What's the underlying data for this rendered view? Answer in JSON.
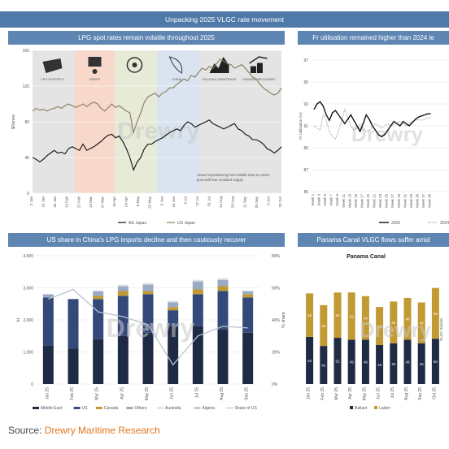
{
  "banner": "Unpacking 2025 VLGC rate movement",
  "source": {
    "prefix": "Source: ",
    "name": "Drewry Maritime Research"
  },
  "watermark": "Drewry",
  "panels": {
    "p1": "LPG spot rates remain volatile throughout 2025",
    "p2": "Fr utilisation remained higher than 2024 le",
    "p3": "US share in China's LPG imports decline and then cautiously recover",
    "p4": "Panama Canal VLGC flows suffer amid"
  },
  "chart_data": [
    {
      "type": "line",
      "title": "LPG spot rates remain volatile throughout 2025",
      "ylabel": "$/tonne",
      "ylim": [
        0,
        160
      ],
      "yticks": [
        0,
        40,
        80,
        120,
        160
      ],
      "xticks": [
        "2 Jan",
        "16 Jan",
        "30 Jan",
        "13 Feb",
        "27 Feb",
        "13 Mar",
        "27 Mar",
        "10 Apr",
        "24 Apr",
        "8 May",
        "22 May",
        "5 Jun",
        "19 Jun",
        "3 Jul",
        "17 Jul",
        "31 Jul",
        "14 Aug",
        "28 Aug",
        "11 Sep",
        "25 Sep",
        "9 Oct",
        "23 Oct"
      ],
      "icon_labels": [
        "LPG EXPORTS",
        "TARIFF",
        "",
        "CHINA",
        "VOLATILE ARBITRAGE",
        "DEMAND RECOVERY"
      ],
      "annotation": "Vessel repositioning from Middle East to USGC post tariff war curtailed supply",
      "series": [
        {
          "name": "AG Japan",
          "values": [
            40,
            38,
            35,
            38,
            42,
            45,
            48,
            45,
            46,
            44,
            50,
            52,
            50,
            48,
            55,
            48,
            50,
            52,
            55,
            58,
            62,
            65,
            66,
            62,
            64,
            58,
            50,
            40,
            26,
            35,
            40,
            50,
            55,
            55,
            58,
            60,
            62,
            65,
            68,
            70,
            72,
            70,
            76,
            80,
            78,
            74,
            76,
            78,
            80,
            82,
            78,
            76,
            74,
            72,
            74,
            76,
            78,
            72,
            70,
            66,
            64,
            60,
            60,
            58,
            55,
            50,
            48,
            45,
            48,
            52
          ]
        },
        {
          "name": "US Japan",
          "values": [
            92,
            95,
            93,
            94,
            92,
            94,
            95,
            97,
            95,
            98,
            100,
            98,
            96,
            98,
            100,
            97,
            100,
            102,
            100,
            95,
            92,
            96,
            100,
            96,
            98,
            95,
            92,
            90,
            68,
            80,
            90,
            102,
            108,
            110,
            112,
            108,
            112,
            114,
            118,
            118,
            122,
            125,
            128,
            126,
            132,
            130,
            135,
            140,
            138,
            142,
            140,
            145,
            150,
            148,
            145,
            144,
            140,
            142,
            144,
            140,
            135,
            130,
            128,
            122,
            118,
            115,
            112,
            110,
            112,
            118
          ]
        }
      ]
    },
    {
      "type": "line",
      "ylabel": "Fr Utilisation (%)",
      "ylim": [
        85,
        97
      ],
      "yticks": [
        85,
        87,
        89,
        91,
        93,
        95,
        97
      ],
      "xticks": [
        "Week 1",
        "Week 3",
        "Week 5",
        "Week 7",
        "Week 9",
        "Week 11",
        "Week 13",
        "Week 15",
        "Week 17",
        "Week 19",
        "Week 21",
        "Week 23",
        "Week 25",
        "Week 27",
        "Week 29",
        "Week 31",
        "Week 33",
        "Week 35",
        "Week 37",
        "Week 39"
      ],
      "series": [
        {
          "name": "2025",
          "values": [
            92.5,
            93.0,
            93.2,
            92.8,
            92.0,
            91.5,
            92.2,
            92.4,
            92.0,
            91.6,
            91.2,
            91.6,
            92.0,
            91.5,
            91.0,
            90.5,
            91.2,
            92.0,
            91.6,
            91.0,
            90.6,
            90.2,
            90.0,
            90.2,
            90.6,
            91.0,
            91.4,
            91.2,
            91.0,
            91.4,
            91.2,
            91.0,
            91.3,
            91.6,
            91.8,
            91.9,
            92.0,
            92.1,
            92.1
          ]
        },
        {
          "name": "2024",
          "values": [
            91.0,
            90.8,
            90.6,
            92.0,
            91.5,
            90.5,
            90.0,
            89.8,
            90.5,
            91.5,
            92.5,
            91.8,
            91.0,
            90.6,
            90.8,
            91.2,
            90.8,
            90.5,
            90.6,
            90.9,
            91.2,
            91.0,
            90.8,
            91.0,
            91.2,
            91.0,
            91.1,
            91.3,
            91.4,
            91.2,
            91.0,
            91.2,
            91.4,
            91.5,
            91.6,
            91.5,
            91.6,
            91.7,
            91.8
          ]
        }
      ]
    },
    {
      "type": "bar",
      "stacked": true,
      "categories": [
        "Jan 25",
        "Feb 25",
        "Mar 25",
        "Apr 25",
        "May 25",
        "Jun 25",
        "Jul 25",
        "Aug 25",
        "Sep 25"
      ],
      "ylabel": "kt",
      "y2label": "% share",
      "ylim": [
        0,
        4000
      ],
      "yticks": [
        0,
        1000,
        2000,
        3000,
        4000
      ],
      "y2ticks": [
        "0%",
        "20%",
        "40%",
        "60%",
        "80%"
      ],
      "series": [
        {
          "name": "Middle East",
          "color": "#1f2a44",
          "values": [
            1200,
            1100,
            1400,
            1500,
            1600,
            1800,
            1800,
            1700,
            1600
          ]
        },
        {
          "name": "US",
          "color": "#34497a",
          "values": [
            1500,
            1550,
            1250,
            1250,
            1200,
            500,
            1000,
            1200,
            1100
          ]
        },
        {
          "name": "Canada",
          "color": "#c19a33",
          "values": [
            0,
            0,
            100,
            150,
            100,
            100,
            150,
            150,
            100
          ]
        },
        {
          "name": "Others",
          "color": "#9aabc6",
          "values": [
            100,
            0,
            150,
            150,
            200,
            150,
            250,
            200,
            100
          ]
        },
        {
          "name": "Australia",
          "color": "#e3e3e3",
          "values": [
            0,
            0,
            0,
            50,
            50,
            50,
            50,
            50,
            0
          ]
        },
        {
          "name": "Algeria",
          "color": "#c9c9c9",
          "values": [
            0,
            0,
            0,
            0,
            0,
            0,
            0,
            0,
            0
          ]
        }
      ],
      "share": {
        "name": "Share of US",
        "values": [
          53,
          59,
          45,
          42,
          37,
          12,
          30,
          36,
          35
        ]
      }
    },
    {
      "type": "bar",
      "stacked": true,
      "title": "Panama Canal",
      "ylabel": "VLGC transits",
      "categories": [
        "Jan 25",
        "Feb 25",
        "Mar 25",
        "Apr 25",
        "May 25",
        "Jun 25",
        "Jul 25",
        "Aug 25",
        "Sep 25",
        "Oct 25"
      ],
      "series": [
        {
          "name": "Ballast",
          "color": "#1f2a44",
          "values": [
            52,
            42,
            51,
            49,
            49,
            43,
            45,
            49,
            45,
            50
          ]
        },
        {
          "name": "Laden",
          "color": "#c19a33",
          "values": [
            48,
            45,
            50,
            52,
            48,
            42,
            46,
            46,
            45,
            56
          ]
        }
      ],
      "legend": [
        "Ballast",
        "Laden"
      ]
    }
  ]
}
